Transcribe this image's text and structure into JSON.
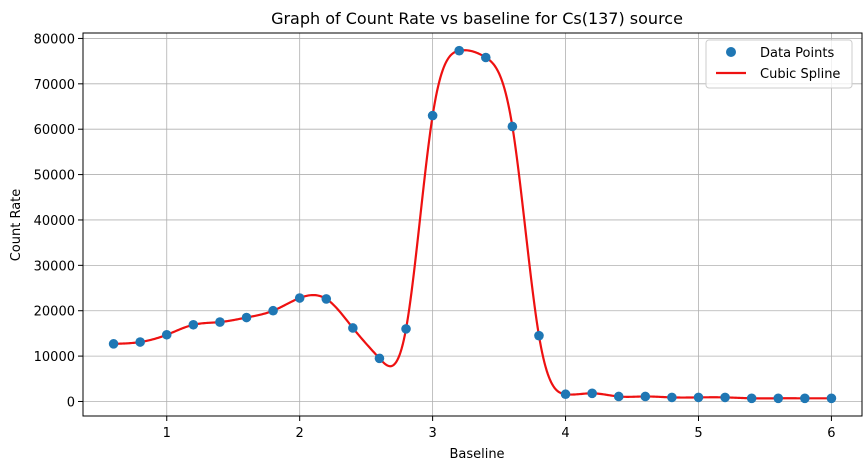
{
  "chart_data": {
    "type": "scatter",
    "title": "Graph of Count Rate vs baseline for Cs(137) source",
    "xlabel": "Baseline",
    "ylabel": "Count Rate",
    "xlim": [
      0.37,
      6.23
    ],
    "ylim": [
      -3200,
      81200
    ],
    "xticks": [
      1,
      2,
      3,
      4,
      5,
      6
    ],
    "yticks": [
      0,
      10000,
      20000,
      30000,
      40000,
      50000,
      60000,
      70000,
      80000
    ],
    "grid": true,
    "legend_position": "top-right",
    "series": [
      {
        "name": "Data Points",
        "kind": "scatter",
        "color": "#1f77b4",
        "x": [
          0.6,
          0.8,
          1.0,
          1.2,
          1.4,
          1.6,
          1.8,
          2.0,
          2.2,
          2.4,
          2.6,
          2.8,
          3.0,
          3.2,
          3.4,
          3.6,
          3.8,
          4.0,
          4.2,
          4.4,
          4.6,
          4.8,
          5.0,
          5.2,
          5.4,
          5.6,
          5.8,
          6.0
        ],
        "y": [
          12700,
          13100,
          14700,
          16900,
          17500,
          18500,
          20000,
          22800,
          22600,
          16200,
          9500,
          16000,
          63000,
          77300,
          75800,
          60600,
          14500,
          1600,
          1800,
          1100,
          1100,
          900,
          900,
          900,
          700,
          700,
          700,
          700
        ]
      },
      {
        "name": "Cubic Spline",
        "kind": "line",
        "color": "#ee1111"
      }
    ]
  }
}
